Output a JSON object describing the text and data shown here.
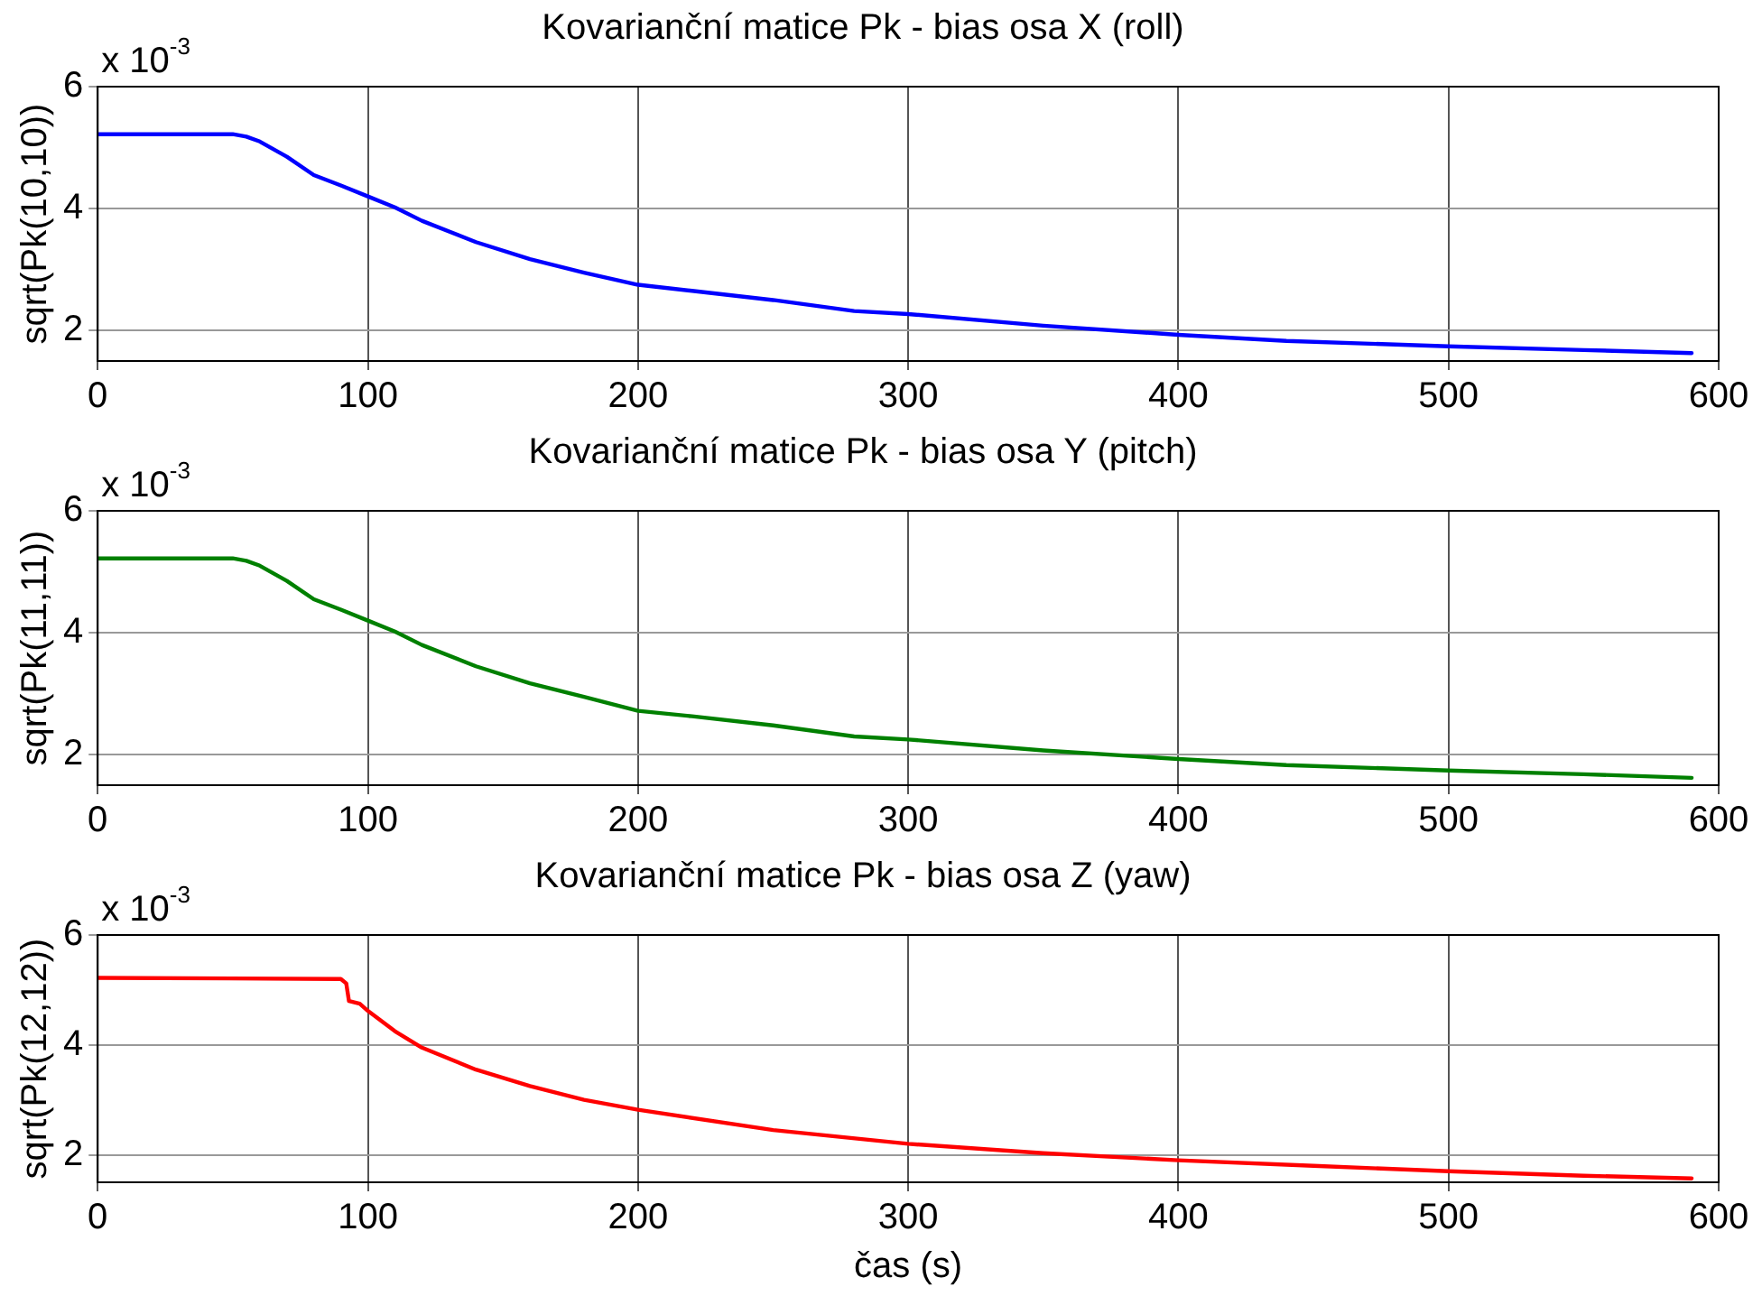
{
  "chart_data": [
    {
      "type": "line",
      "title": "Kovarianční matice Pk - bias osa X (roll)",
      "ylabel": "sqrt(Pk(10,10))",
      "annotations": [
        "x 10$^{-3}$"
      ],
      "xlim": [
        0,
        600
      ],
      "xticks": [
        0,
        100,
        200,
        300,
        400,
        500,
        600
      ],
      "ylim": [
        1.5,
        6
      ],
      "yticks": [
        2,
        4,
        6
      ],
      "grid": true,
      "marker": "none",
      "line_style": "solid",
      "series": [
        {
          "color": "#0000ff",
          "x": [
            0,
            50,
            55,
            60,
            70,
            80,
            90,
            100,
            110,
            120,
            140,
            160,
            180,
            200,
            220,
            250,
            280,
            300,
            350,
            400,
            440,
            500,
            550,
            590
          ],
          "values": [
            5.22,
            5.22,
            5.18,
            5.1,
            4.85,
            4.55,
            4.38,
            4.2,
            4.02,
            3.8,
            3.45,
            3.17,
            2.95,
            2.75,
            2.65,
            2.5,
            2.32,
            2.27,
            2.08,
            1.93,
            1.83,
            1.74,
            1.68,
            1.63
          ]
        }
      ]
    },
    {
      "type": "line",
      "title": "Kovarianční matice Pk - bias osa Y (pitch)",
      "ylabel": "sqrt(Pk(11,11))",
      "annotations": [
        "x 10$^{-3}$"
      ],
      "xlim": [
        0,
        600
      ],
      "xticks": [
        0,
        100,
        200,
        300,
        400,
        500,
        600
      ],
      "ylim": [
        1.5,
        6
      ],
      "yticks": [
        2,
        4,
        6
      ],
      "grid": true,
      "marker": "none",
      "line_style": "solid",
      "series": [
        {
          "color": "#008000",
          "x": [
            0,
            50,
            55,
            60,
            70,
            80,
            90,
            100,
            110,
            120,
            140,
            160,
            180,
            200,
            220,
            250,
            280,
            300,
            350,
            400,
            440,
            500,
            550,
            590
          ],
          "values": [
            5.22,
            5.22,
            5.18,
            5.1,
            4.85,
            4.55,
            4.38,
            4.2,
            4.02,
            3.8,
            3.45,
            3.17,
            2.95,
            2.72,
            2.63,
            2.48,
            2.3,
            2.25,
            2.07,
            1.93,
            1.83,
            1.74,
            1.68,
            1.62
          ]
        }
      ]
    },
    {
      "type": "line",
      "title": "Kovarianční matice Pk - bias osa Z (yaw)",
      "xlabel": "čas (s)",
      "ylabel": "sqrt(Pk(12,12))",
      "annotations": [
        "x 10$^{-3}$"
      ],
      "xlim": [
        0,
        600
      ],
      "xticks": [
        0,
        100,
        200,
        300,
        400,
        500,
        600
      ],
      "ylim": [
        1.5,
        6
      ],
      "yticks": [
        2,
        4,
        6
      ],
      "grid": true,
      "marker": "none",
      "line_style": "solid",
      "series": [
        {
          "color": "#ff0000",
          "x": [
            0,
            90,
            92,
            93,
            97,
            100,
            110,
            120,
            140,
            160,
            180,
            200,
            250,
            300,
            350,
            400,
            450,
            500,
            550,
            590
          ],
          "values": [
            5.22,
            5.2,
            5.12,
            4.8,
            4.75,
            4.62,
            4.25,
            3.95,
            3.55,
            3.25,
            3.0,
            2.82,
            2.45,
            2.2,
            2.03,
            1.9,
            1.8,
            1.7,
            1.62,
            1.57
          ]
        }
      ]
    }
  ]
}
